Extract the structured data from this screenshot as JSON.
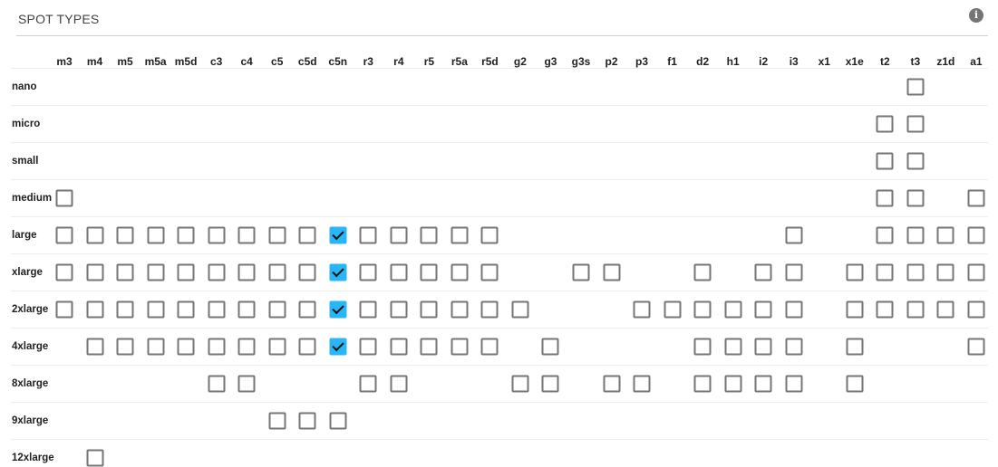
{
  "panel": {
    "title": "SPOT TYPES",
    "info_icon": "info-icon"
  },
  "columns": [
    "m3",
    "m4",
    "m5",
    "m5a",
    "m5d",
    "c3",
    "c4",
    "c5",
    "c5d",
    "c5n",
    "r3",
    "r4",
    "r5",
    "r5a",
    "r5d",
    "g2",
    "g3",
    "g3s",
    "p2",
    "p3",
    "f1",
    "d2",
    "h1",
    "i2",
    "i3",
    "x1",
    "x1e",
    "t2",
    "t3",
    "z1d",
    "a1"
  ],
  "accent_color": "#29b6f6",
  "rows": [
    {
      "label": "nano",
      "available": [
        "t3"
      ],
      "checked": []
    },
    {
      "label": "micro",
      "available": [
        "t2",
        "t3"
      ],
      "checked": []
    },
    {
      "label": "small",
      "available": [
        "t2",
        "t3"
      ],
      "checked": []
    },
    {
      "label": "medium",
      "available": [
        "m3",
        "t2",
        "t3",
        "a1"
      ],
      "checked": []
    },
    {
      "label": "large",
      "available": [
        "m3",
        "m4",
        "m5",
        "m5a",
        "m5d",
        "c3",
        "c4",
        "c5",
        "c5d",
        "c5n",
        "r3",
        "r4",
        "r5",
        "r5a",
        "r5d",
        "i3",
        "t2",
        "t3",
        "z1d",
        "a1"
      ],
      "checked": [
        "c5n"
      ]
    },
    {
      "label": "xlarge",
      "available": [
        "m3",
        "m4",
        "m5",
        "m5a",
        "m5d",
        "c3",
        "c4",
        "c5",
        "c5d",
        "c5n",
        "r3",
        "r4",
        "r5",
        "r5a",
        "r5d",
        "g3s",
        "p2",
        "d2",
        "i2",
        "i3",
        "x1e",
        "t2",
        "t3",
        "z1d",
        "a1"
      ],
      "checked": [
        "c5n"
      ]
    },
    {
      "label": "2xlarge",
      "available": [
        "m3",
        "m4",
        "m5",
        "m5a",
        "m5d",
        "c3",
        "c4",
        "c5",
        "c5d",
        "c5n",
        "r3",
        "r4",
        "r5",
        "r5a",
        "r5d",
        "g2",
        "p3",
        "f1",
        "d2",
        "h1",
        "i2",
        "i3",
        "x1e",
        "t2",
        "t3",
        "z1d",
        "a1"
      ],
      "checked": [
        "c5n"
      ]
    },
    {
      "label": "4xlarge",
      "available": [
        "m4",
        "m5",
        "m5a",
        "m5d",
        "c3",
        "c4",
        "c5",
        "c5d",
        "c5n",
        "r3",
        "r4",
        "r5",
        "r5a",
        "r5d",
        "g3",
        "d2",
        "h1",
        "i2",
        "i3",
        "x1e",
        "a1"
      ],
      "checked": [
        "c5n"
      ]
    },
    {
      "label": "8xlarge",
      "available": [
        "c3",
        "c4",
        "r3",
        "r4",
        "g2",
        "g3",
        "p2",
        "p3",
        "d2",
        "h1",
        "i2",
        "i3",
        "x1e"
      ],
      "checked": []
    },
    {
      "label": "9xlarge",
      "available": [
        "c5",
        "c5d",
        "c5n"
      ],
      "checked": []
    },
    {
      "label": "12xlarge",
      "available": [
        "m4"
      ],
      "checked": []
    }
  ]
}
